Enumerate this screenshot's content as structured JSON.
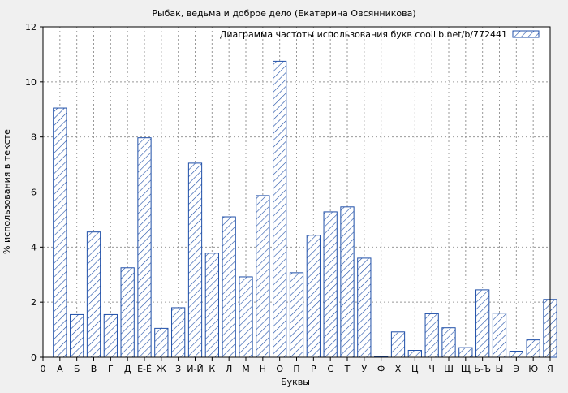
{
  "chart_data": {
    "type": "bar",
    "title": "Рыбак, ведьма и доброе дело (Екатерина Овсянникова)",
    "xlabel": "Буквы",
    "ylabel": "% использования в тексте",
    "ylim": [
      0,
      12
    ],
    "y_ticks": [
      0,
      2,
      4,
      6,
      8,
      10,
      12
    ],
    "x_tick_labels": [
      "0",
      "А",
      "Б",
      "В",
      "Г",
      "Д",
      "Е-Ё",
      "Ж",
      "З",
      "И-Й",
      "К",
      "Л",
      "М",
      "Н",
      "О",
      "П",
      "Р",
      "С",
      "Т",
      "У",
      "Ф",
      "Х",
      "Ц",
      "Ч",
      "Ш",
      "Щ",
      "Ь-Ъ",
      "Ы",
      "Э",
      "Ю",
      "Я"
    ],
    "grid": true,
    "legend_position": "top-right",
    "series": [
      {
        "name": "Диаграмма частоты использования букв coollib.net/b/772441",
        "color": "#1f4fa8",
        "pattern": "diagonal-hatch",
        "categories": [
          "А",
          "Б",
          "В",
          "Г",
          "Д",
          "Е-Ё",
          "Ж",
          "З",
          "И-Й",
          "К",
          "Л",
          "М",
          "Н",
          "О",
          "П",
          "Р",
          "С",
          "Т",
          "У",
          "Ф",
          "Х",
          "Ц",
          "Ч",
          "Ш",
          "Щ",
          "Ь-Ъ",
          "Ы",
          "Э",
          "Ю",
          "Я"
        ],
        "values": [
          9.05,
          1.55,
          4.55,
          1.55,
          3.25,
          7.97,
          1.05,
          1.8,
          7.05,
          3.78,
          5.1,
          2.92,
          5.87,
          10.75,
          3.07,
          4.43,
          5.28,
          5.46,
          3.6,
          0.03,
          0.92,
          0.25,
          1.58,
          1.07,
          0.35,
          2.45,
          1.6,
          0.22,
          0.63,
          2.1
        ]
      }
    ]
  }
}
